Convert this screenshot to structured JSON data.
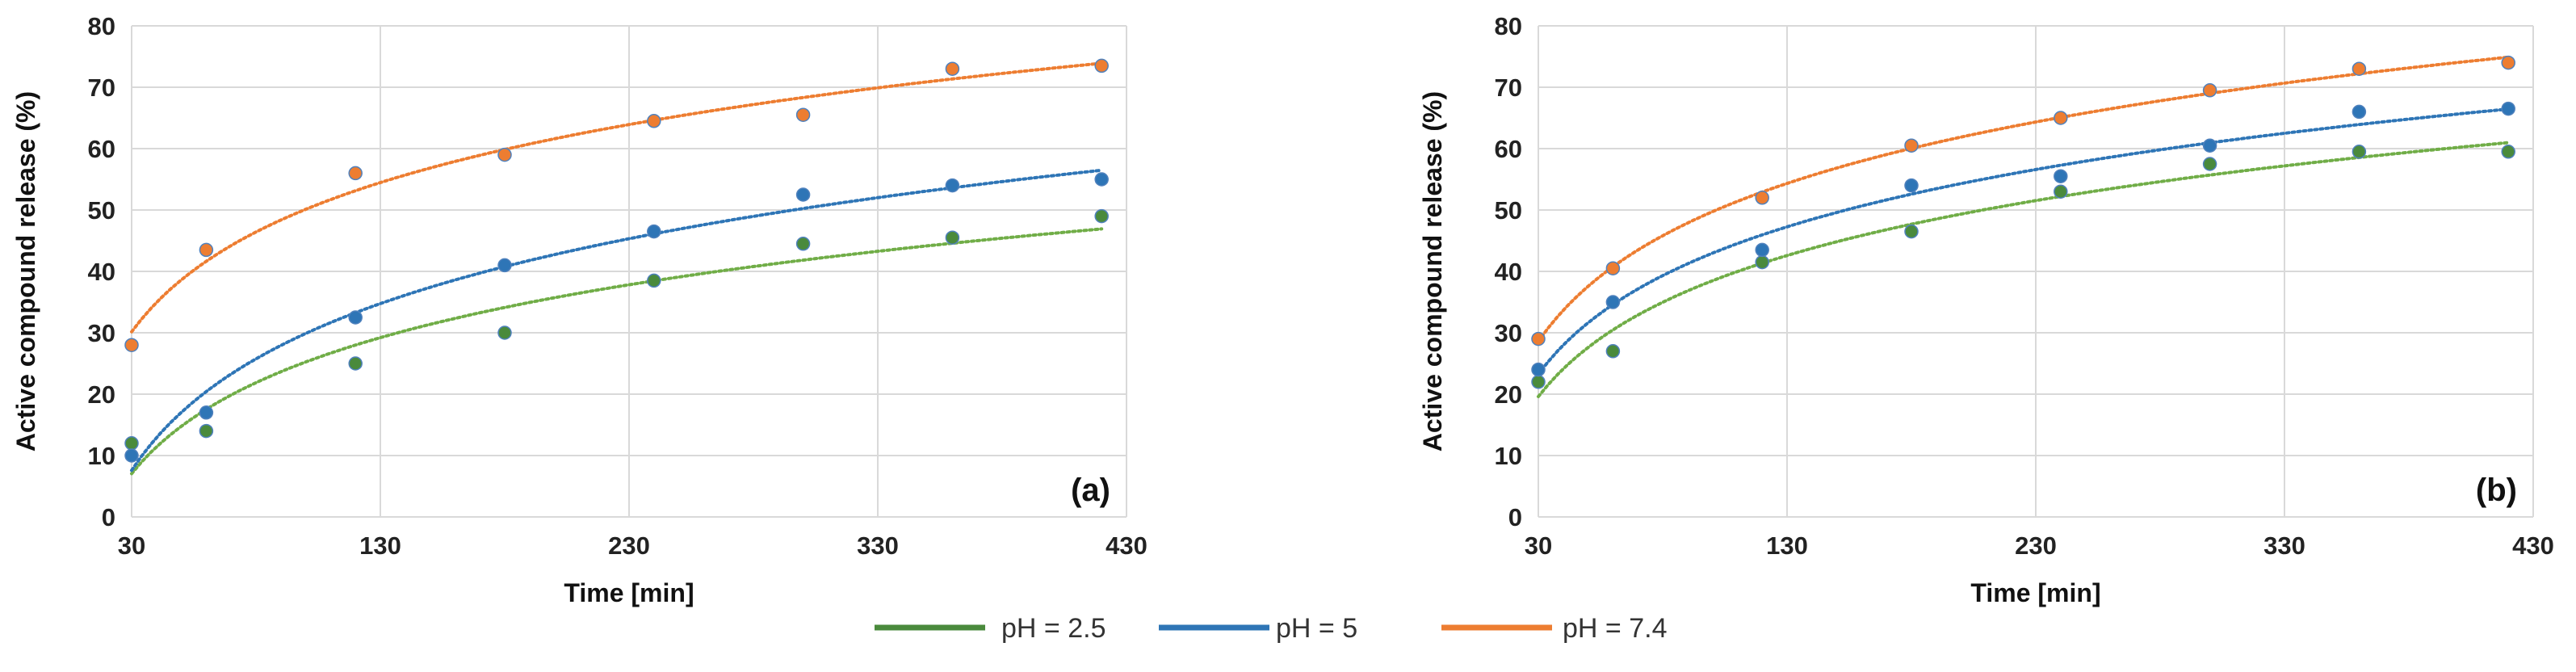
{
  "colors": {
    "pH_2_5_line": "#70AD47",
    "pH_2_5_marker": "#4A8A3C",
    "pH_5": "#2E75B6",
    "pH_7_4": "#ED7D31",
    "grid": "#D9D9D9",
    "marker_edge": "#4F81BD"
  },
  "legend": [
    {
      "label": "pH = 2.5",
      "color_key": "pH_2_5_marker"
    },
    {
      "label": "pH = 5",
      "color_key": "pH_5"
    },
    {
      "label": "pH = 7.4",
      "color_key": "pH_7_4"
    }
  ],
  "chart_data": [
    {
      "type": "scatter",
      "panel_label": "(a)",
      "xlabel": "Time [min]",
      "ylabel": "Active compound release (%)",
      "xlim": [
        30,
        430
      ],
      "ylim": [
        0,
        80
      ],
      "xticks": [
        30,
        130,
        230,
        330,
        430
      ],
      "yticks": [
        0,
        10,
        20,
        30,
        40,
        50,
        60,
        70,
        80
      ],
      "grid": true,
      "trendline": "logarithmic",
      "series": [
        {
          "name": "pH = 2.5",
          "color_key": "pH_2_5_marker",
          "line_color_key": "pH_2_5_line",
          "x": [
            30,
            60,
            120,
            180,
            240,
            300,
            360,
            420
          ],
          "y": [
            12,
            14,
            25,
            30,
            38.5,
            44.5,
            45.5,
            49
          ]
        },
        {
          "name": "pH = 5",
          "color_key": "pH_5",
          "line_color_key": "pH_5",
          "x": [
            30,
            60,
            120,
            180,
            240,
            300,
            360,
            420
          ],
          "y": [
            10,
            17,
            32.5,
            41,
            46.5,
            52.5,
            54,
            55
          ]
        },
        {
          "name": "pH = 7.4",
          "color_key": "pH_7_4",
          "line_color_key": "pH_7_4",
          "x": [
            30,
            60,
            120,
            180,
            240,
            300,
            360,
            420
          ],
          "y": [
            28,
            43.5,
            56,
            59,
            64.5,
            65.5,
            73,
            73.5
          ]
        }
      ]
    },
    {
      "type": "scatter",
      "panel_label": "(b)",
      "xlabel": "Time [min]",
      "ylabel": "Active compound release (%)",
      "xlim": [
        30,
        430
      ],
      "ylim": [
        0,
        80
      ],
      "xticks": [
        30,
        130,
        230,
        330,
        430
      ],
      "yticks": [
        0,
        10,
        20,
        30,
        40,
        50,
        60,
        70,
        80
      ],
      "grid": true,
      "trendline": "logarithmic",
      "series": [
        {
          "name": "pH = 2.5",
          "color_key": "pH_2_5_marker",
          "line_color_key": "pH_2_5_line",
          "x": [
            30,
            60,
            120,
            180,
            240,
            300,
            360,
            420
          ],
          "y": [
            22,
            27,
            41.5,
            46.5,
            53,
            57.5,
            59.5,
            59.5
          ]
        },
        {
          "name": "pH = 5",
          "color_key": "pH_5",
          "line_color_key": "pH_5",
          "x": [
            30,
            60,
            120,
            180,
            240,
            300,
            360,
            420
          ],
          "y": [
            24,
            35,
            43.5,
            54,
            55.5,
            60.5,
            66,
            66.5
          ]
        },
        {
          "name": "pH = 7.4",
          "color_key": "pH_7_4",
          "line_color_key": "pH_7_4",
          "x": [
            30,
            60,
            120,
            180,
            240,
            300,
            360,
            420
          ],
          "y": [
            29,
            40.5,
            52,
            60.5,
            65,
            69.5,
            73,
            74
          ]
        }
      ]
    }
  ]
}
